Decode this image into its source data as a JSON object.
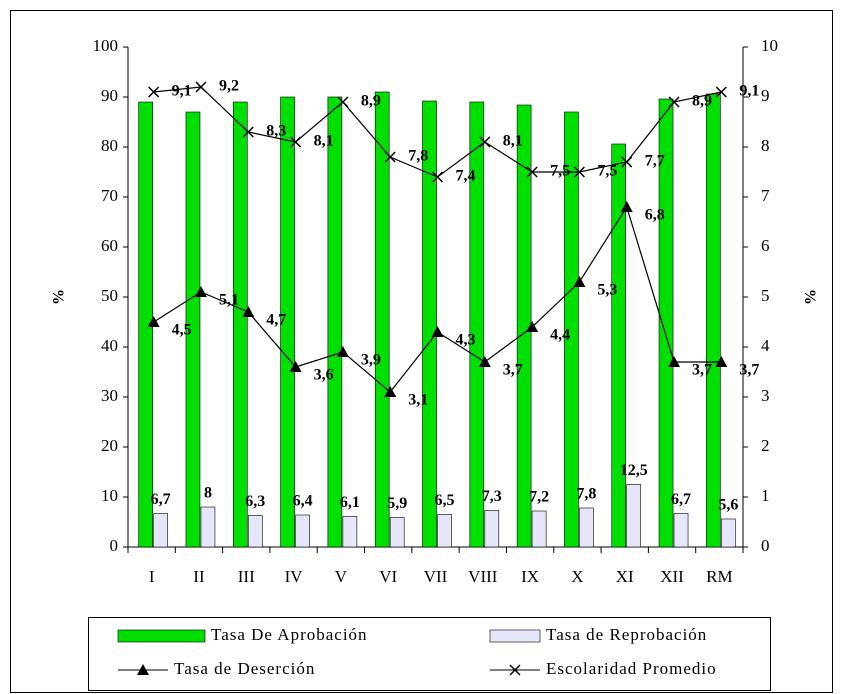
{
  "chart_data": {
    "type": "bar",
    "categories": [
      "I",
      "II",
      "III",
      "IV",
      "V",
      "VI",
      "VII",
      "VIII",
      "IX",
      "X",
      "XI",
      "XII",
      "RM"
    ],
    "ylim": [
      0,
      100
    ],
    "yticks": [
      0,
      10,
      20,
      30,
      40,
      50,
      60,
      70,
      80,
      90,
      100
    ],
    "y2lim": [
      0,
      10
    ],
    "y2ticks": [
      0,
      1,
      2,
      3,
      4,
      5,
      6,
      7,
      8,
      9,
      10
    ],
    "ylabel": "%",
    "y2label": "%",
    "series": [
      {
        "name": "Tasa De Aprobación",
        "type": "bar",
        "color": "#00e000",
        "values": [
          89,
          87,
          89,
          90,
          90,
          91,
          89.2,
          89,
          88.4,
          87,
          80.6,
          89.6,
          90.6
        ]
      },
      {
        "name": "Tasa de Reprobación",
        "type": "bar",
        "color": "#e6e6fa",
        "values": [
          6.7,
          8,
          6.3,
          6.4,
          6.1,
          5.9,
          6.5,
          7.3,
          7.2,
          7.8,
          12.5,
          6.7,
          5.6
        ],
        "value_labels": [
          "6,7",
          "8",
          "6,3",
          "6,4",
          "6,1",
          "5,9",
          "6,5",
          "7,3",
          "7,2",
          "7,8",
          "12,5",
          "6,7",
          "5,6"
        ]
      },
      {
        "name": "Tasa de Deserción",
        "type": "line",
        "marker": "triangle",
        "axis": "y2",
        "color": "#000000",
        "values": [
          4.5,
          5.1,
          4.7,
          3.6,
          3.9,
          3.1,
          4.3,
          3.7,
          4.4,
          5.3,
          6.8,
          3.7,
          3.7
        ],
        "value_labels": [
          "4,5",
          "5,1",
          "4,7",
          "3,6",
          "3,9",
          "3,1",
          "4,3",
          "3,7",
          "4,4",
          "5,3",
          "6,8",
          "3,7",
          "3,7"
        ]
      },
      {
        "name": "Escolaridad Promedio",
        "type": "line",
        "marker": "x",
        "axis": "y2",
        "color": "#000000",
        "values": [
          9.1,
          9.2,
          8.3,
          8.1,
          8.9,
          7.8,
          7.4,
          8.1,
          7.5,
          7.5,
          7.7,
          8.9,
          9.1
        ],
        "value_labels": [
          "9,1",
          "9,2",
          "8,3",
          "8,1",
          "8,9",
          "7,8",
          "7,4",
          "8,1",
          "7,5",
          "7,5",
          "7,7",
          "8,9",
          "9,1"
        ]
      }
    ]
  }
}
